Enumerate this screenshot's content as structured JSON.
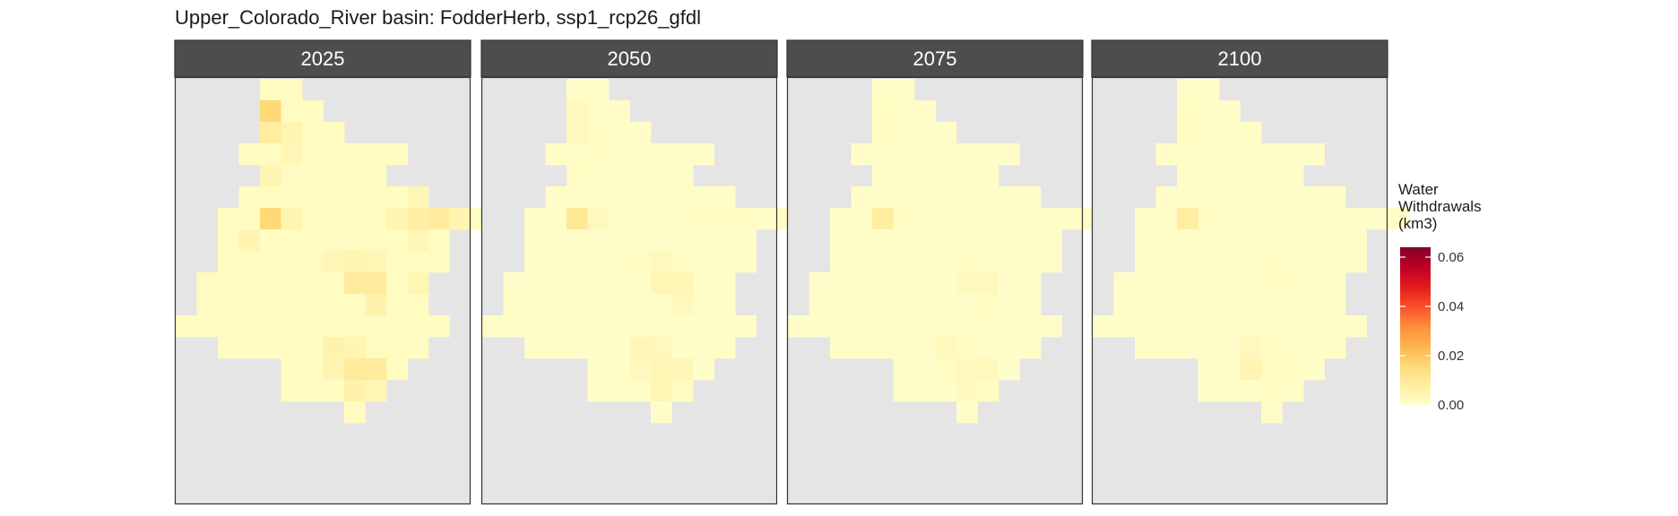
{
  "chart_data": {
    "type": "heatmap",
    "title": "Upper_Colorado_River basin: FodderHerb, ssp1_rcp26_gfdl",
    "panels": [
      "2025",
      "2050",
      "2075",
      "2100"
    ],
    "legend": {
      "title_lines": [
        "Water",
        "Withdrawals",
        "(km3)"
      ],
      "ticks": [
        0.0,
        0.02,
        0.04,
        0.06
      ],
      "tick_labels": [
        "0.00",
        "0.02",
        "0.04",
        "0.06"
      ],
      "limits": [
        0,
        0.064
      ],
      "colors": [
        "#ffffcc",
        "#ffeda0",
        "#fed976",
        "#feb24c",
        "#fd8d3c",
        "#fc4e2a",
        "#e31a1c",
        "#bd0026",
        "#800026"
      ]
    },
    "grid": {
      "row_spans": [
        [
          4,
          5
        ],
        [
          4,
          6
        ],
        [
          4,
          7
        ],
        [
          3,
          10
        ],
        [
          4,
          9
        ],
        [
          3,
          11
        ],
        [
          2,
          14
        ],
        [
          2,
          12
        ],
        [
          2,
          12
        ],
        [
          1,
          11
        ],
        [
          1,
          11
        ],
        [
          0,
          12
        ],
        [
          2,
          11
        ],
        [
          5,
          10
        ],
        [
          5,
          9
        ],
        [
          8,
          8
        ]
      ],
      "hot_cells": [
        {
          "r": 1,
          "c": 4,
          "v": [
            0.016,
            0.003,
            0.002,
            0.002
          ]
        },
        {
          "r": 2,
          "c": 4,
          "v": [
            0.008,
            0.003,
            0.002,
            0.002
          ]
        },
        {
          "r": 2,
          "c": 5,
          "v": [
            0.005,
            0.002,
            0.001,
            0.001
          ]
        },
        {
          "r": 3,
          "c": 5,
          "v": [
            0.004,
            0.002,
            0.001,
            0.001
          ]
        },
        {
          "r": 4,
          "c": 4,
          "v": [
            0.005,
            0.002,
            0.001,
            0.001
          ]
        },
        {
          "r": 5,
          "c": 11,
          "v": [
            0.004,
            0.001,
            0.001,
            0.001
          ]
        },
        {
          "r": 5,
          "c": 12,
          "v": [
            0.004,
            0.001,
            0.001,
            0.001
          ]
        },
        {
          "r": 6,
          "c": 4,
          "v": [
            0.016,
            0.01,
            0.008,
            0.008
          ]
        },
        {
          "r": 6,
          "c": 5,
          "v": [
            0.005,
            0.003,
            0.002,
            0.002
          ]
        },
        {
          "r": 6,
          "c": 10,
          "v": [
            0.005,
            0.002,
            0.001,
            0.001
          ]
        },
        {
          "r": 6,
          "c": 11,
          "v": [
            0.007,
            0.002,
            0.001,
            0.001
          ]
        },
        {
          "r": 6,
          "c": 12,
          "v": [
            0.009,
            0.002,
            0.001,
            0.001
          ]
        },
        {
          "r": 6,
          "c": 13,
          "v": [
            0.005,
            0.001,
            0.001,
            0.001
          ]
        },
        {
          "r": 7,
          "c": 3,
          "v": [
            0.005,
            0.001,
            0.001,
            0.001
          ]
        },
        {
          "r": 7,
          "c": 11,
          "v": [
            0.004,
            0.001,
            0.001,
            0.001
          ]
        },
        {
          "r": 8,
          "c": 7,
          "v": [
            0.004,
            0.002,
            0.001,
            0.001
          ]
        },
        {
          "r": 8,
          "c": 8,
          "v": [
            0.005,
            0.003,
            0.002,
            0.002
          ]
        },
        {
          "r": 8,
          "c": 9,
          "v": [
            0.004,
            0.002,
            0.001,
            0.001
          ]
        },
        {
          "r": 9,
          "c": 8,
          "v": [
            0.009,
            0.004,
            0.003,
            0.002
          ]
        },
        {
          "r": 9,
          "c": 9,
          "v": [
            0.009,
            0.004,
            0.003,
            0.002
          ]
        },
        {
          "r": 9,
          "c": 11,
          "v": [
            0.004,
            0.001,
            0.001,
            0.001
          ]
        },
        {
          "r": 10,
          "c": 9,
          "v": [
            0.006,
            0.003,
            0.002,
            0.001
          ]
        },
        {
          "r": 12,
          "c": 7,
          "v": [
            0.006,
            0.004,
            0.003,
            0.003
          ]
        },
        {
          "r": 12,
          "c": 8,
          "v": [
            0.005,
            0.003,
            0.002,
            0.002
          ]
        },
        {
          "r": 13,
          "c": 7,
          "v": [
            0.005,
            0.003,
            0.002,
            0.005
          ]
        },
        {
          "r": 13,
          "c": 8,
          "v": [
            0.009,
            0.004,
            0.003,
            0.002
          ]
        },
        {
          "r": 13,
          "c": 9,
          "v": [
            0.009,
            0.004,
            0.003,
            0.002
          ]
        },
        {
          "r": 14,
          "c": 8,
          "v": [
            0.006,
            0.004,
            0.003,
            0.002
          ]
        },
        {
          "r": 14,
          "c": 9,
          "v": [
            0.004,
            0.002,
            0.002,
            0.001
          ]
        }
      ],
      "base_value": [
        0.002,
        0.001,
        0.001,
        0.001
      ]
    }
  }
}
